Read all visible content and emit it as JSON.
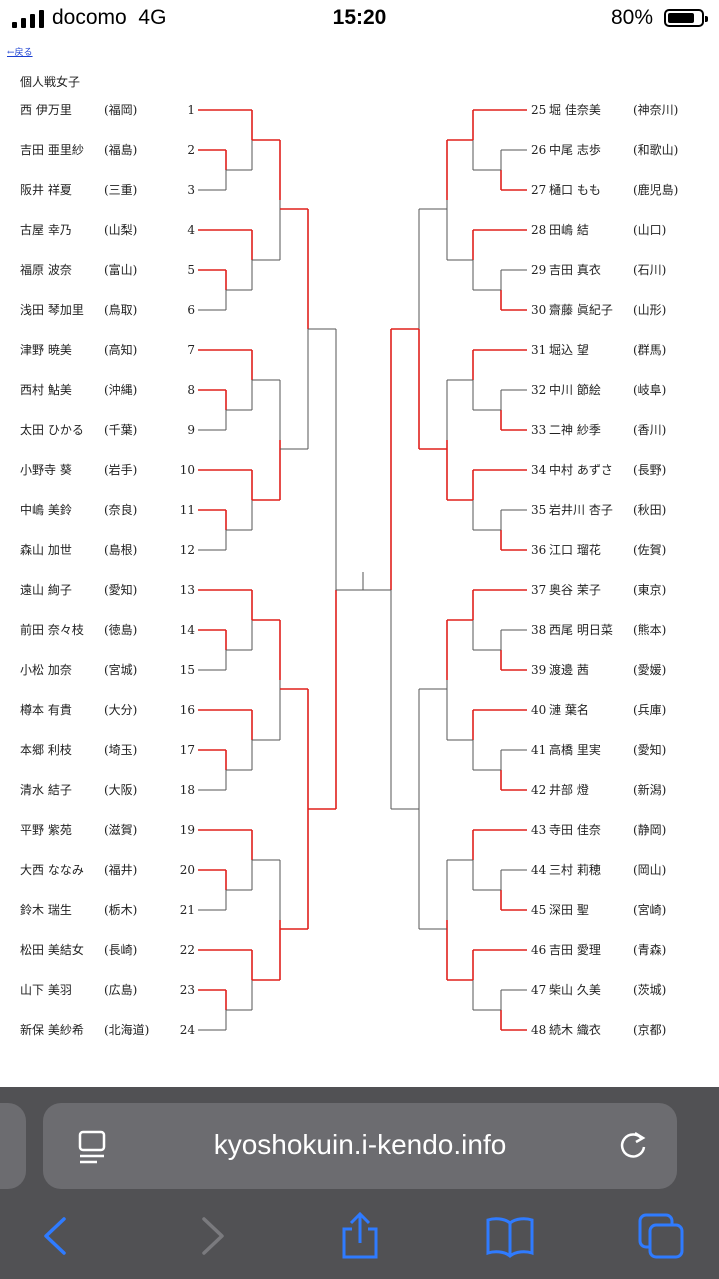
{
  "status_bar": {
    "carrier": "docomo",
    "network": "4G",
    "time": "15:20",
    "battery": "80%"
  },
  "page": {
    "back_link": "←戻る",
    "title": "個人戦女子"
  },
  "left_players": [
    {
      "num": "1",
      "name": "西 伊万里",
      "pref": "(福岡)"
    },
    {
      "num": "2",
      "name": "吉田 亜里紗",
      "pref": "(福島)"
    },
    {
      "num": "3",
      "name": "阪井 祥夏",
      "pref": "(三重)"
    },
    {
      "num": "4",
      "name": "古屋 幸乃",
      "pref": "(山梨)"
    },
    {
      "num": "5",
      "name": "福原 波奈",
      "pref": "(富山)"
    },
    {
      "num": "6",
      "name": "浅田 琴加里",
      "pref": "(鳥取)"
    },
    {
      "num": "7",
      "name": "津野 暁美",
      "pref": "(高知)"
    },
    {
      "num": "8",
      "name": "西村 鮎美",
      "pref": "(沖縄)"
    },
    {
      "num": "9",
      "name": "太田 ひかる",
      "pref": "(千葉)"
    },
    {
      "num": "10",
      "name": "小野寺 葵",
      "pref": "(岩手)"
    },
    {
      "num": "11",
      "name": "中嶋 美鈴",
      "pref": "(奈良)"
    },
    {
      "num": "12",
      "name": "森山 加世",
      "pref": "(島根)"
    },
    {
      "num": "13",
      "name": "遠山 絢子",
      "pref": "(愛知)"
    },
    {
      "num": "14",
      "name": "前田 奈々枝",
      "pref": "(徳島)"
    },
    {
      "num": "15",
      "name": "小松 加奈",
      "pref": "(宮城)"
    },
    {
      "num": "16",
      "name": "樽本 有貴",
      "pref": "(大分)"
    },
    {
      "num": "17",
      "name": "本郷 利枝",
      "pref": "(埼玉)"
    },
    {
      "num": "18",
      "name": "清水 結子",
      "pref": "(大阪)"
    },
    {
      "num": "19",
      "name": "平野 紫苑",
      "pref": "(滋賀)"
    },
    {
      "num": "20",
      "name": "大西 ななみ",
      "pref": "(福井)"
    },
    {
      "num": "21",
      "name": "鈴木 瑞生",
      "pref": "(栃木)"
    },
    {
      "num": "22",
      "name": "松田 美結女",
      "pref": "(長崎)"
    },
    {
      "num": "23",
      "name": "山下 美羽",
      "pref": "(広島)"
    },
    {
      "num": "24",
      "name": "新保 美紗希",
      "pref": "(北海道)"
    }
  ],
  "right_players": [
    {
      "num": "25",
      "name": "堀 佳奈美",
      "pref": "(神奈川)"
    },
    {
      "num": "26",
      "name": "中尾 志歩",
      "pref": "(和歌山)"
    },
    {
      "num": "27",
      "name": "樋口 もも",
      "pref": "(鹿児島)"
    },
    {
      "num": "28",
      "name": "田嶋 結",
      "pref": "(山口)"
    },
    {
      "num": "29",
      "name": "吉田 真衣",
      "pref": "(石川)"
    },
    {
      "num": "30",
      "name": "齋藤 眞紀子",
      "pref": "(山形)"
    },
    {
      "num": "31",
      "name": "堀込 望",
      "pref": "(群馬)"
    },
    {
      "num": "32",
      "name": "中川 節絵",
      "pref": "(岐阜)"
    },
    {
      "num": "33",
      "name": "二神 紗季",
      "pref": "(香川)"
    },
    {
      "num": "34",
      "name": "中村 あずさ",
      "pref": "(長野)"
    },
    {
      "num": "35",
      "name": "岩井川 杏子",
      "pref": "(秋田)"
    },
    {
      "num": "36",
      "name": "江口 瑠花",
      "pref": "(佐賀)"
    },
    {
      "num": "37",
      "name": "奥谷 茉子",
      "pref": "(東京)"
    },
    {
      "num": "38",
      "name": "西尾 明日菜",
      "pref": "(熊本)"
    },
    {
      "num": "39",
      "name": "渡邊 茜",
      "pref": "(愛媛)"
    },
    {
      "num": "40",
      "name": "漣 葉名",
      "pref": "(兵庫)"
    },
    {
      "num": "41",
      "name": "高橋 里実",
      "pref": "(愛知)"
    },
    {
      "num": "42",
      "name": "井部 燈",
      "pref": "(新潟)"
    },
    {
      "num": "43",
      "name": "寺田 佳奈",
      "pref": "(静岡)"
    },
    {
      "num": "44",
      "name": "三村 莉穂",
      "pref": "(岡山)"
    },
    {
      "num": "45",
      "name": "深田 聖",
      "pref": "(宮崎)"
    },
    {
      "num": "46",
      "name": "吉田 愛理",
      "pref": "(青森)"
    },
    {
      "num": "47",
      "name": "柴山 久美",
      "pref": "(茨城)"
    },
    {
      "num": "48",
      "name": "続木 織衣",
      "pref": "(京都)"
    }
  ],
  "bracket": {
    "win_color": "#e0201c",
    "line_color": "#555555"
  },
  "browser": {
    "url": "kyoshokuin.i-kendo.info"
  }
}
